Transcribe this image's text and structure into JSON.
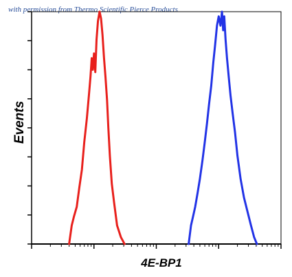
{
  "watermark": "with permission from Thermo Scientific Pierce Products",
  "chart_data": {
    "type": "line",
    "xlabel": "4E-BP1",
    "ylabel": "Events",
    "xscale": "log",
    "xlim": [
      1,
      10000
    ],
    "ylim": [
      0,
      100
    ],
    "grid": false,
    "series": [
      {
        "color": "#e8201c",
        "x": [
          4.0,
          4.4,
          4.8,
          5.3,
          5.8,
          6.4,
          7.0,
          7.7,
          8.3,
          8.8,
          9.2,
          9.6,
          10.0,
          10.5,
          11.0,
          11.6,
          12.3,
          13.0,
          13.7,
          14.5,
          15.3,
          16.2,
          17.0,
          18.0,
          19.3,
          21.0,
          23.5,
          27.0,
          31.0
        ],
        "y": [
          0,
          8,
          12,
          16,
          24,
          32,
          44,
          54,
          64,
          72,
          80,
          75,
          82,
          74,
          88,
          96,
          100,
          97,
          90,
          80,
          72,
          62,
          50,
          38,
          26,
          18,
          8,
          3,
          0
        ]
      },
      {
        "color": "#2233e6",
        "x": [
          330,
          360,
          390,
          420,
          460,
          500,
          550,
          600,
          650,
          700,
          760,
          820,
          880,
          940,
          1000,
          1070,
          1130,
          1180,
          1230,
          1290,
          1360,
          1450,
          1550,
          1680,
          1830,
          2000,
          2250,
          2550,
          2900,
          3300,
          3700,
          4100
        ],
        "y": [
          0,
          8,
          12,
          16,
          22,
          28,
          36,
          44,
          52,
          60,
          68,
          78,
          86,
          94,
          98,
          94,
          100,
          92,
          98,
          88,
          80,
          72,
          64,
          56,
          48,
          38,
          28,
          20,
          14,
          8,
          3,
          0
        ]
      }
    ]
  }
}
